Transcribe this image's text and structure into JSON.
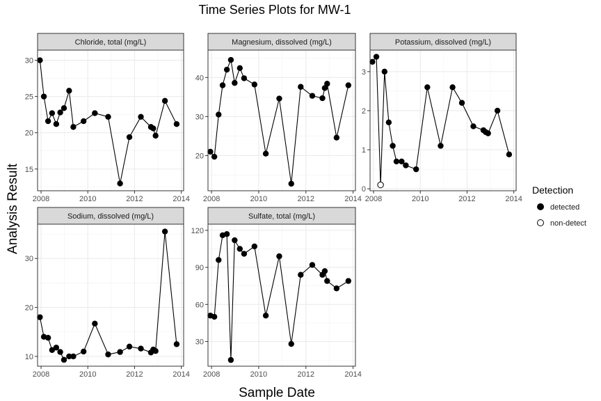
{
  "title": "Time Series Plots for MW-1",
  "xlabel": "Sample Date",
  "ylabel": "Analysis Result",
  "legend": {
    "title": "Detection",
    "items": [
      {
        "label": "detected",
        "filled": true
      },
      {
        "label": "non-detect",
        "filled": false
      }
    ]
  },
  "chart_data": [
    {
      "type": "line",
      "panel": "Chloride, total (mg/L)",
      "xlim": [
        2007.85,
        2014.1
      ],
      "ylim": [
        12.0,
        31.4
      ],
      "xticks": [
        2008,
        2010,
        2012,
        2014
      ],
      "yticks": [
        15,
        20,
        25,
        30
      ],
      "points": [
        {
          "x": 2007.95,
          "y": 30.0,
          "nd": false
        },
        {
          "x": 2008.12,
          "y": 25.0,
          "nd": false
        },
        {
          "x": 2008.3,
          "y": 21.6,
          "nd": false
        },
        {
          "x": 2008.47,
          "y": 22.7,
          "nd": false
        },
        {
          "x": 2008.65,
          "y": 21.2,
          "nd": false
        },
        {
          "x": 2008.82,
          "y": 22.8,
          "nd": false
        },
        {
          "x": 2008.98,
          "y": 23.4,
          "nd": false
        },
        {
          "x": 2009.2,
          "y": 25.8,
          "nd": false
        },
        {
          "x": 2009.38,
          "y": 20.8,
          "nd": false
        },
        {
          "x": 2009.82,
          "y": 21.6,
          "nd": false
        },
        {
          "x": 2010.3,
          "y": 22.7,
          "nd": false
        },
        {
          "x": 2010.87,
          "y": 22.2,
          "nd": false
        },
        {
          "x": 2011.38,
          "y": 13.0,
          "nd": false
        },
        {
          "x": 2011.78,
          "y": 19.4,
          "nd": false
        },
        {
          "x": 2012.27,
          "y": 22.2,
          "nd": false
        },
        {
          "x": 2012.7,
          "y": 20.8,
          "nd": false
        },
        {
          "x": 2012.8,
          "y": 20.6,
          "nd": false
        },
        {
          "x": 2012.9,
          "y": 19.6,
          "nd": false
        },
        {
          "x": 2013.3,
          "y": 24.4,
          "nd": false
        },
        {
          "x": 2013.8,
          "y": 21.2,
          "nd": false
        }
      ]
    },
    {
      "type": "line",
      "panel": "Magnesium, dissolved (mg/L)",
      "xlim": [
        2007.85,
        2014.1
      ],
      "ylim": [
        11.0,
        47.0
      ],
      "xticks": [
        2008,
        2010,
        2012,
        2014
      ],
      "yticks": [
        20,
        30,
        40
      ],
      "points": [
        {
          "x": 2007.95,
          "y": 21.0,
          "nd": false
        },
        {
          "x": 2008.12,
          "y": 19.7,
          "nd": false
        },
        {
          "x": 2008.3,
          "y": 30.5,
          "nd": false
        },
        {
          "x": 2008.47,
          "y": 38.0,
          "nd": false
        },
        {
          "x": 2008.65,
          "y": 42.0,
          "nd": false
        },
        {
          "x": 2008.82,
          "y": 44.5,
          "nd": false
        },
        {
          "x": 2008.98,
          "y": 38.6,
          "nd": false
        },
        {
          "x": 2009.2,
          "y": 42.4,
          "nd": false
        },
        {
          "x": 2009.38,
          "y": 39.8,
          "nd": false
        },
        {
          "x": 2009.82,
          "y": 38.2,
          "nd": false
        },
        {
          "x": 2010.3,
          "y": 20.5,
          "nd": false
        },
        {
          "x": 2010.87,
          "y": 34.6,
          "nd": false
        },
        {
          "x": 2011.38,
          "y": 12.8,
          "nd": false
        },
        {
          "x": 2011.78,
          "y": 37.6,
          "nd": false
        },
        {
          "x": 2012.27,
          "y": 35.3,
          "nd": false
        },
        {
          "x": 2012.7,
          "y": 34.7,
          "nd": false
        },
        {
          "x": 2012.8,
          "y": 37.3,
          "nd": false
        },
        {
          "x": 2012.9,
          "y": 38.4,
          "nd": false
        },
        {
          "x": 2013.3,
          "y": 24.6,
          "nd": false
        },
        {
          "x": 2013.8,
          "y": 38.0,
          "nd": false
        }
      ]
    },
    {
      "type": "line",
      "panel": "Potassium, dissolved (mg/L)",
      "xlim": [
        2007.85,
        2014.1
      ],
      "ylim": [
        -0.05,
        3.55
      ],
      "xticks": [
        2008,
        2010,
        2012,
        2014
      ],
      "yticks": [
        0,
        1,
        2,
        3
      ],
      "points": [
        {
          "x": 2007.95,
          "y": 3.25,
          "nd": false
        },
        {
          "x": 2008.12,
          "y": 3.38,
          "nd": false
        },
        {
          "x": 2008.3,
          "y": 0.1,
          "nd": true
        },
        {
          "x": 2008.47,
          "y": 3.0,
          "nd": false
        },
        {
          "x": 2008.65,
          "y": 1.7,
          "nd": false
        },
        {
          "x": 2008.82,
          "y": 1.1,
          "nd": false
        },
        {
          "x": 2008.98,
          "y": 0.7,
          "nd": false
        },
        {
          "x": 2009.2,
          "y": 0.7,
          "nd": false
        },
        {
          "x": 2009.38,
          "y": 0.6,
          "nd": false
        },
        {
          "x": 2009.82,
          "y": 0.5,
          "nd": false
        },
        {
          "x": 2010.3,
          "y": 2.6,
          "nd": false
        },
        {
          "x": 2010.87,
          "y": 1.1,
          "nd": false
        },
        {
          "x": 2011.38,
          "y": 2.6,
          "nd": false
        },
        {
          "x": 2011.78,
          "y": 2.2,
          "nd": false
        },
        {
          "x": 2012.27,
          "y": 1.6,
          "nd": false
        },
        {
          "x": 2012.7,
          "y": 1.5,
          "nd": false
        },
        {
          "x": 2012.8,
          "y": 1.45,
          "nd": false
        },
        {
          "x": 2012.9,
          "y": 1.42,
          "nd": false
        },
        {
          "x": 2013.3,
          "y": 2.0,
          "nd": false
        },
        {
          "x": 2013.8,
          "y": 0.88,
          "nd": false
        }
      ]
    },
    {
      "type": "line",
      "panel": "Sodium, dissolved (mg/L)",
      "xlim": [
        2007.85,
        2014.1
      ],
      "ylim": [
        8.0,
        37.0
      ],
      "xticks": [
        2008,
        2010,
        2012,
        2014
      ],
      "yticks": [
        10,
        20,
        30
      ],
      "points": [
        {
          "x": 2007.95,
          "y": 18.0,
          "nd": false
        },
        {
          "x": 2008.12,
          "y": 14.0,
          "nd": false
        },
        {
          "x": 2008.3,
          "y": 13.8,
          "nd": false
        },
        {
          "x": 2008.47,
          "y": 11.3,
          "nd": false
        },
        {
          "x": 2008.65,
          "y": 11.8,
          "nd": false
        },
        {
          "x": 2008.82,
          "y": 10.9,
          "nd": false
        },
        {
          "x": 2008.98,
          "y": 9.3,
          "nd": false
        },
        {
          "x": 2009.2,
          "y": 10.0,
          "nd": false
        },
        {
          "x": 2009.38,
          "y": 10.0,
          "nd": false
        },
        {
          "x": 2009.82,
          "y": 11.0,
          "nd": false
        },
        {
          "x": 2010.3,
          "y": 16.7,
          "nd": false
        },
        {
          "x": 2010.87,
          "y": 10.4,
          "nd": false
        },
        {
          "x": 2011.38,
          "y": 10.9,
          "nd": false
        },
        {
          "x": 2011.78,
          "y": 12.0,
          "nd": false
        },
        {
          "x": 2012.27,
          "y": 11.6,
          "nd": false
        },
        {
          "x": 2012.7,
          "y": 10.8,
          "nd": false
        },
        {
          "x": 2012.8,
          "y": 11.4,
          "nd": false
        },
        {
          "x": 2012.9,
          "y": 11.1,
          "nd": false
        },
        {
          "x": 2013.3,
          "y": 35.5,
          "nd": false
        },
        {
          "x": 2013.8,
          "y": 12.5,
          "nd": false
        }
      ]
    },
    {
      "type": "line",
      "panel": "Sulfate, total (mg/L)",
      "xlim": [
        2007.85,
        2014.1
      ],
      "ylim": [
        10.0,
        125.0
      ],
      "xticks": [
        2008,
        2010,
        2012,
        2014
      ],
      "yticks": [
        30,
        60,
        90,
        120
      ],
      "points": [
        {
          "x": 2007.95,
          "y": 51.0,
          "nd": false
        },
        {
          "x": 2008.12,
          "y": 50.0,
          "nd": false
        },
        {
          "x": 2008.3,
          "y": 96.0,
          "nd": false
        },
        {
          "x": 2008.47,
          "y": 116.0,
          "nd": false
        },
        {
          "x": 2008.65,
          "y": 117.0,
          "nd": false
        },
        {
          "x": 2008.82,
          "y": 15.0,
          "nd": false
        },
        {
          "x": 2008.98,
          "y": 112.0,
          "nd": false
        },
        {
          "x": 2009.2,
          "y": 105.0,
          "nd": false
        },
        {
          "x": 2009.38,
          "y": 101.0,
          "nd": false
        },
        {
          "x": 2009.82,
          "y": 107.0,
          "nd": false
        },
        {
          "x": 2010.3,
          "y": 51.0,
          "nd": false
        },
        {
          "x": 2010.87,
          "y": 99.0,
          "nd": false
        },
        {
          "x": 2011.38,
          "y": 28.0,
          "nd": false
        },
        {
          "x": 2011.78,
          "y": 84.0,
          "nd": false
        },
        {
          "x": 2012.27,
          "y": 92.0,
          "nd": false
        },
        {
          "x": 2012.7,
          "y": 84.0,
          "nd": false
        },
        {
          "x": 2012.8,
          "y": 87.0,
          "nd": false
        },
        {
          "x": 2012.9,
          "y": 79.0,
          "nd": false
        },
        {
          "x": 2013.3,
          "y": 73.0,
          "nd": false
        },
        {
          "x": 2013.8,
          "y": 79.0,
          "nd": false
        }
      ]
    }
  ]
}
